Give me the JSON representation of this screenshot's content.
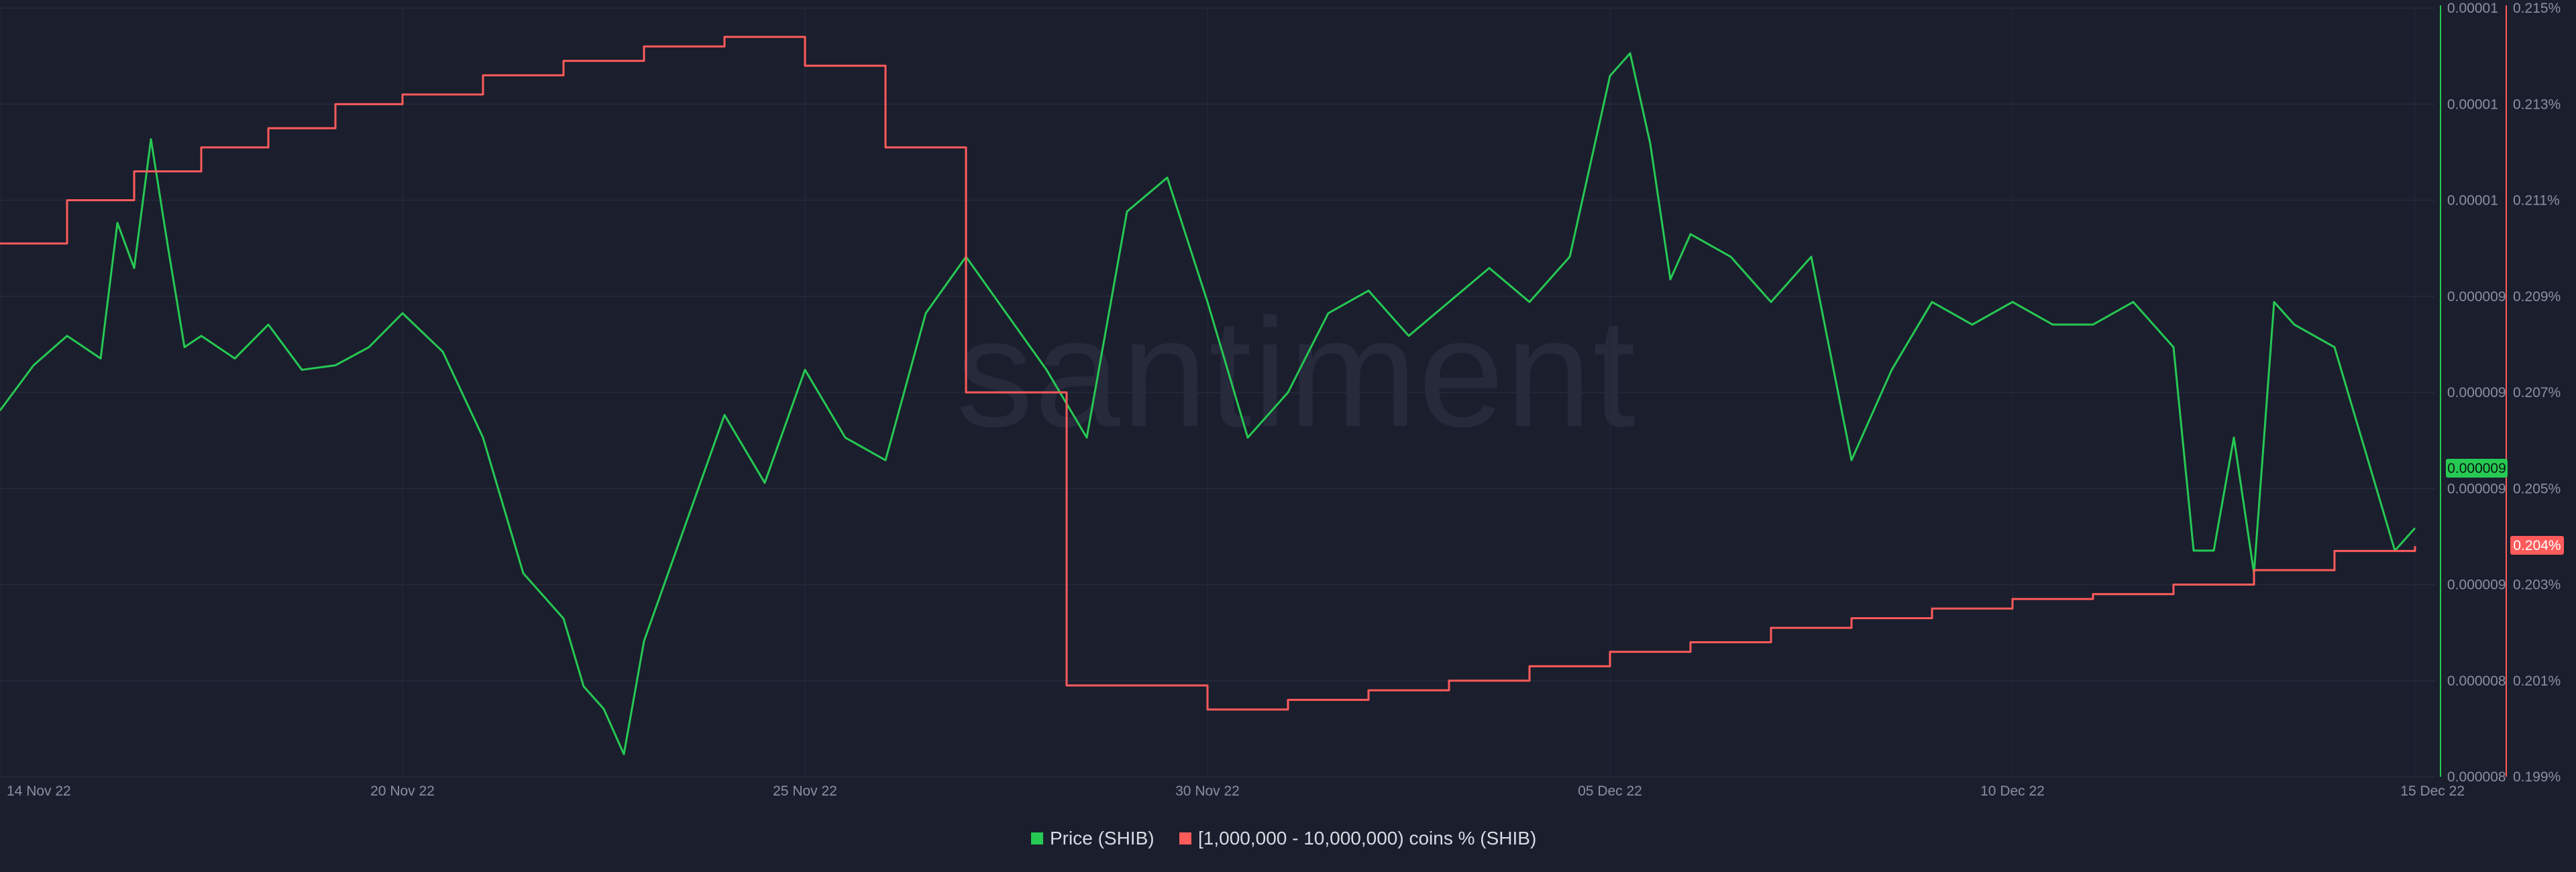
{
  "watermark": "santiment",
  "legend": {
    "items": [
      {
        "label": "Price (SHIB)",
        "color": "#26c953"
      },
      {
        "label": "[1,000,000 - 10,000,000) coins % (SHIB)",
        "color": "#ff5b5b"
      }
    ]
  },
  "badges": {
    "price_current": "0.000009",
    "holders_current": "0.204%"
  },
  "chart_data": {
    "type": "line",
    "title": "",
    "x_tick_labels": [
      "14 Nov 22",
      "20 Nov 22",
      "25 Nov 22",
      "30 Nov 22",
      "05 Dec 22",
      "10 Dec 22",
      "15 Dec 22"
    ],
    "x_ticks_dates": [
      "2022-11-14",
      "2022-11-20",
      "2022-11-25",
      "2022-11-30",
      "2022-12-05",
      "2022-12-10",
      "2022-12-15"
    ],
    "xlim": [
      "2022-11-14",
      "2022-12-15"
    ],
    "grid": true,
    "legend_position": "bottom-center",
    "y_axes": [
      {
        "id": "price",
        "side": "right",
        "color": "#26c953",
        "ylim": [
          7.8e-06,
          1.12e-05
        ],
        "tick_labels": [
          "0.00001",
          "0.00001",
          "0.00001",
          "0.000009",
          "0.000009",
          "0.000009",
          "0.000009",
          "0.000008",
          "0.000008"
        ]
      },
      {
        "id": "holders",
        "side": "right",
        "color": "#ff5b5b",
        "unit": "%",
        "ylim": [
          0.199,
          0.215
        ],
        "tick_labels": [
          "0.215%",
          "0.213%",
          "0.211%",
          "0.209%",
          "0.207%",
          "0.205%",
          "0.203%",
          "0.201%",
          "0.199%"
        ]
      }
    ],
    "series": [
      {
        "name": "Price (SHIB)",
        "axis": "price",
        "color": "#26c953",
        "points": [
          [
            "2022-11-14",
            9.42e-06
          ],
          [
            "2022-11-14T12:00",
            9.62e-06
          ],
          [
            "2022-11-15",
            9.75e-06
          ],
          [
            "2022-11-15T12:00",
            9.65e-06
          ],
          [
            "2022-11-15T18:00",
            1.025e-05
          ],
          [
            "2022-11-16",
            1.005e-05
          ],
          [
            "2022-11-16T06:00",
            1.062e-05
          ],
          [
            "2022-11-16T12:00",
            1.015e-05
          ],
          [
            "2022-11-16T18:00",
            9.7e-06
          ],
          [
            "2022-11-17",
            9.75e-06
          ],
          [
            "2022-11-17T12:00",
            9.65e-06
          ],
          [
            "2022-11-18",
            9.8e-06
          ],
          [
            "2022-11-18T12:00",
            9.6e-06
          ],
          [
            "2022-11-19",
            9.62e-06
          ],
          [
            "2022-11-19T12:00",
            9.7e-06
          ],
          [
            "2022-11-20",
            9.85e-06
          ],
          [
            "2022-11-20T12:00",
            9.68e-06
          ],
          [
            "2022-11-21",
            9.3e-06
          ],
          [
            "2022-11-21T12:00",
            8.7e-06
          ],
          [
            "2022-11-22",
            8.5e-06
          ],
          [
            "2022-11-22T06:00",
            8.2e-06
          ],
          [
            "2022-11-22T12:00",
            8.1e-06
          ],
          [
            "2022-11-22T18:00",
            7.9e-06
          ],
          [
            "2022-11-23",
            8.4e-06
          ],
          [
            "2022-11-23T12:00",
            8.9e-06
          ],
          [
            "2022-11-24",
            9.4e-06
          ],
          [
            "2022-11-24T12:00",
            9.1e-06
          ],
          [
            "2022-11-25",
            9.6e-06
          ],
          [
            "2022-11-25T12:00",
            9.3e-06
          ],
          [
            "2022-11-26",
            9.2e-06
          ],
          [
            "2022-11-26T12:00",
            9.85e-06
          ],
          [
            "2022-11-27",
            1.01e-05
          ],
          [
            "2022-11-27T12:00",
            9.85e-06
          ],
          [
            "2022-11-28",
            9.6e-06
          ],
          [
            "2022-11-28T12:00",
            9.3e-06
          ],
          [
            "2022-11-29",
            1.03e-05
          ],
          [
            "2022-11-29T12:00",
            1.045e-05
          ],
          [
            "2022-11-30",
            9.9e-06
          ],
          [
            "2022-11-30T12:00",
            9.3e-06
          ],
          [
            "2022-12-01",
            9.5e-06
          ],
          [
            "2022-12-01T12:00",
            9.85e-06
          ],
          [
            "2022-12-02",
            9.95e-06
          ],
          [
            "2022-12-02T12:00",
            9.75e-06
          ],
          [
            "2022-12-03",
            9.9e-06
          ],
          [
            "2022-12-03T12:00",
            1.005e-05
          ],
          [
            "2022-12-04",
            9.9e-06
          ],
          [
            "2022-12-04T12:00",
            1.01e-05
          ],
          [
            "2022-12-05",
            1.09e-05
          ],
          [
            "2022-12-05T06:00",
            1.1e-05
          ],
          [
            "2022-12-05T12:00",
            1.06e-05
          ],
          [
            "2022-12-05T18:00",
            1e-05
          ],
          [
            "2022-12-06",
            1.02e-05
          ],
          [
            "2022-12-06T12:00",
            1.01e-05
          ],
          [
            "2022-12-07",
            9.9e-06
          ],
          [
            "2022-12-07T12:00",
            1.01e-05
          ],
          [
            "2022-12-08",
            9.2e-06
          ],
          [
            "2022-12-08T12:00",
            9.6e-06
          ],
          [
            "2022-12-09",
            9.9e-06
          ],
          [
            "2022-12-09T12:00",
            9.8e-06
          ],
          [
            "2022-12-10",
            9.9e-06
          ],
          [
            "2022-12-10T12:00",
            9.8e-06
          ],
          [
            "2022-12-11",
            9.8e-06
          ],
          [
            "2022-12-11T12:00",
            9.9e-06
          ],
          [
            "2022-12-12",
            9.7e-06
          ],
          [
            "2022-12-12T06:00",
            8.8e-06
          ],
          [
            "2022-12-12T12:00",
            8.8e-06
          ],
          [
            "2022-12-12T18:00",
            9.3e-06
          ],
          [
            "2022-12-13",
            8.7e-06
          ],
          [
            "2022-12-13T06:00",
            9.9e-06
          ],
          [
            "2022-12-13T12:00",
            9.8e-06
          ],
          [
            "2022-12-14",
            9.7e-06
          ],
          [
            "2022-12-14T12:00",
            9.1e-06
          ],
          [
            "2022-12-14T18:00",
            8.8e-06
          ],
          [
            "2022-12-15",
            8.9e-06
          ]
        ]
      },
      {
        "name": "[1,000,000 - 10,000,000) coins % (SHIB)",
        "axis": "holders",
        "color": "#ff5b5b",
        "steps": [
          [
            "2022-11-14",
            0.2101
          ],
          [
            "2022-11-15",
            0.211
          ],
          [
            "2022-11-16",
            0.2116
          ],
          [
            "2022-11-17",
            0.2121
          ],
          [
            "2022-11-18",
            0.2125
          ],
          [
            "2022-11-19",
            0.213
          ],
          [
            "2022-11-20",
            0.2132
          ],
          [
            "2022-11-21",
            0.2136
          ],
          [
            "2022-11-22",
            0.2139
          ],
          [
            "2022-11-23",
            0.2142
          ],
          [
            "2022-11-24",
            0.2144
          ],
          [
            "2022-11-25",
            0.2138
          ],
          [
            "2022-11-26",
            0.2121
          ],
          [
            "2022-11-27",
            0.207
          ],
          [
            "2022-11-28",
            0.207
          ],
          [
            "2022-11-28T06:00",
            0.2009
          ],
          [
            "2022-11-29",
            0.2009
          ],
          [
            "2022-11-30",
            0.2004
          ],
          [
            "2022-12-01",
            0.2006
          ],
          [
            "2022-12-02",
            0.2008
          ],
          [
            "2022-12-03",
            0.201
          ],
          [
            "2022-12-04",
            0.2013
          ],
          [
            "2022-12-05",
            0.2016
          ],
          [
            "2022-12-06",
            0.2018
          ],
          [
            "2022-12-07",
            0.2021
          ],
          [
            "2022-12-08",
            0.2023
          ],
          [
            "2022-12-09",
            0.2025
          ],
          [
            "2022-12-10",
            0.2027
          ],
          [
            "2022-12-11",
            0.2028
          ],
          [
            "2022-12-12",
            0.203
          ],
          [
            "2022-12-13",
            0.2033
          ],
          [
            "2022-12-14",
            0.2037
          ],
          [
            "2022-12-15",
            0.2038
          ]
        ]
      }
    ]
  }
}
